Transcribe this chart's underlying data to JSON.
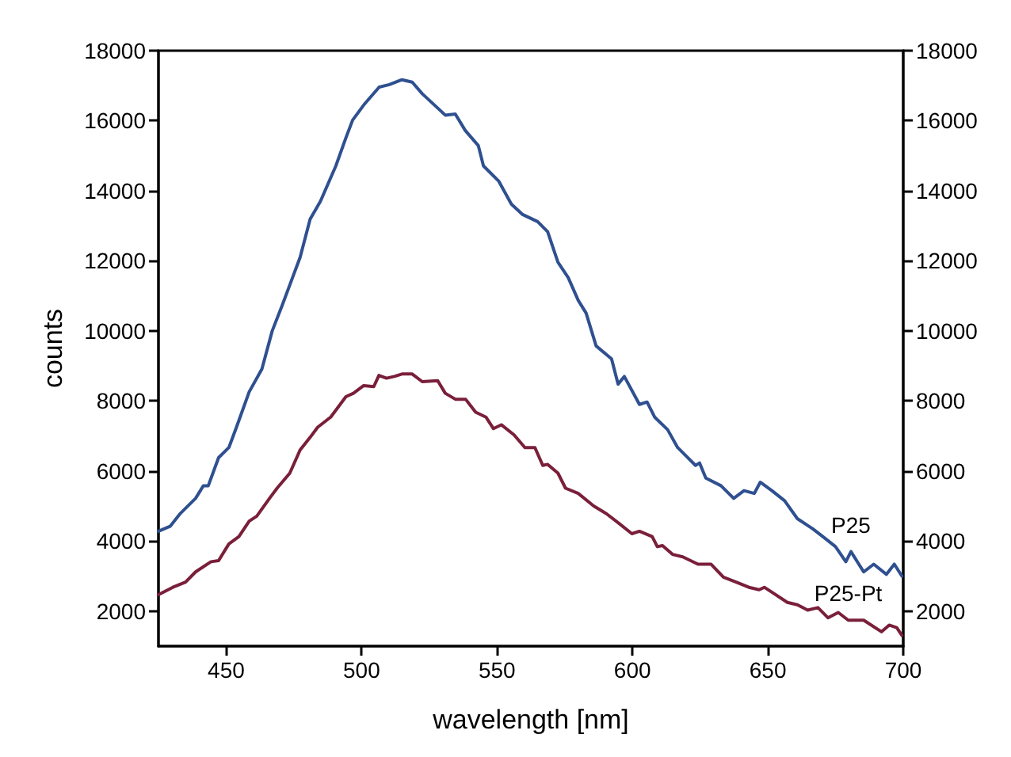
{
  "chart_data": {
    "type": "line",
    "xlabel": "wavelength [nm]",
    "ylabel": "counts",
    "xlim": [
      425,
      700
    ],
    "xticks": [
      450,
      500,
      550,
      600,
      650,
      700
    ],
    "ylim": [
      1000,
      18000
    ],
    "yticks": [
      2000,
      4000,
      6000,
      8000,
      10000,
      12000,
      14000,
      16000,
      18000
    ],
    "y2lim": [
      1000,
      18000
    ],
    "y2ticks": [
      2000,
      4000,
      6000,
      8000,
      10000,
      12000,
      14000,
      16000,
      18000
    ],
    "grid": false,
    "legend": false,
    "marker": "none",
    "line_style": "solid",
    "series": [
      {
        "name": "P25",
        "color": "#2f5090",
        "x": [
          425,
          429.3,
          433.1,
          438.7,
          441.6,
          443.4,
          447.2,
          451,
          453.8,
          458.5,
          463.2,
          467,
          470.7,
          474.5,
          477.3,
          481,
          484.8,
          490.5,
          494.2,
          496.7,
          500.8,
          506.5,
          510.2,
          514.9,
          518.7,
          522.4,
          530.9,
          534.6,
          538.3,
          543.1,
          545,
          550.6,
          555.3,
          559.3,
          565,
          568.7,
          572.5,
          576.3,
          580,
          582.9,
          586.6,
          592.3,
          594.7,
          597,
          602.6,
          605.4,
          608.2,
          613,
          616.7,
          623.3,
          624.8,
          627.1,
          632.7,
          637.4,
          641.2,
          645,
          647.2,
          651.5,
          656.2,
          660.9,
          666.6,
          670.3,
          675,
          678.8,
          680.7,
          685.4,
          689.1,
          693.8,
          696.7,
          699.5
        ],
        "values": [
          4280,
          4420,
          4790,
          5220,
          5580,
          5580,
          6380,
          6670,
          7250,
          8260,
          8910,
          10000,
          10730,
          11520,
          12100,
          13190,
          13700,
          14710,
          15510,
          16020,
          16450,
          16960,
          17030,
          17170,
          17100,
          16770,
          16160,
          16190,
          15720,
          15290,
          14710,
          14280,
          13620,
          13330,
          13120,
          12830,
          11960,
          11520,
          10870,
          10510,
          9570,
          9200,
          8480,
          8700,
          7900,
          7970,
          7540,
          7180,
          6670,
          6160,
          6230,
          5800,
          5580,
          5220,
          5440,
          5360,
          5680,
          5440,
          5150,
          4640,
          4350,
          4130,
          3840,
          3410,
          3700,
          3120,
          3340,
          3050,
          3340,
          3000
        ]
      },
      {
        "name": "P25-Pt",
        "color": "#7a1f3a",
        "x": [
          425,
          430.3,
          435,
          438.7,
          444.4,
          447.2,
          451,
          454.7,
          458.5,
          461.3,
          466,
          468.8,
          473.5,
          477.3,
          481,
          483.8,
          488.6,
          494.2,
          497,
          500.8,
          504.5,
          506.4,
          509.2,
          512.1,
          514.9,
          518.7,
          522.4,
          528.1,
          530.9,
          534.6,
          538.4,
          542.1,
          545.9,
          548.7,
          551.6,
          556.3,
          560.3,
          564,
          566.9,
          568.7,
          572.5,
          575.3,
          580,
          585.7,
          590.4,
          595.1,
          599.8,
          602.6,
          607.3,
          609.2,
          611.1,
          614.8,
          618.6,
          624.2,
          629,
          633.6,
          638.3,
          643,
          646.8,
          648.7,
          651.5,
          657.2,
          660.9,
          664.7,
          668.5,
          672.2,
          676,
          679.7,
          685.4,
          692,
          694.8,
          697.6,
          699.5
        ],
        "values": [
          2470,
          2680,
          2830,
          3120,
          3410,
          3440,
          3920,
          4130,
          4570,
          4710,
          5220,
          5510,
          5940,
          6600,
          6960,
          7250,
          7540,
          8120,
          8220,
          8440,
          8410,
          8730,
          8650,
          8700,
          8770,
          8770,
          8550,
          8580,
          8220,
          8050,
          8050,
          7680,
          7540,
          7210,
          7320,
          7030,
          6670,
          6670,
          6160,
          6190,
          5940,
          5510,
          5360,
          5000,
          4780,
          4500,
          4210,
          4280,
          4130,
          3840,
          3870,
          3620,
          3550,
          3340,
          3340,
          2970,
          2830,
          2680,
          2610,
          2680,
          2540,
          2250,
          2180,
          2030,
          2100,
          1810,
          1960,
          1740,
          1740,
          1410,
          1600,
          1530,
          1310
        ]
      }
    ]
  }
}
